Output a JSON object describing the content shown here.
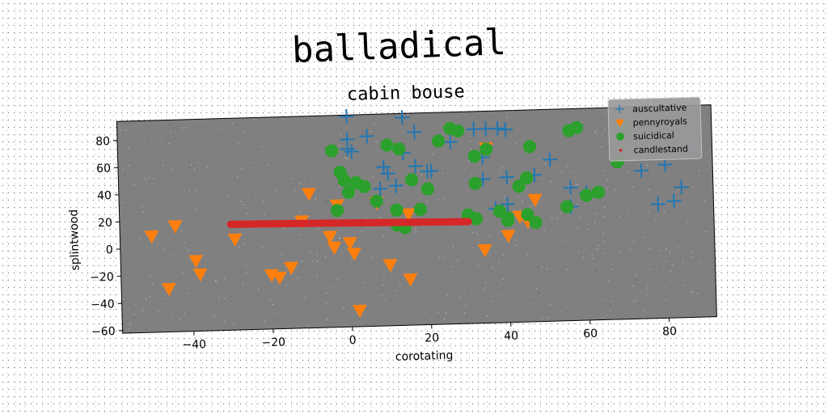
{
  "chart_data": {
    "type": "scatter",
    "title": "balladical",
    "subtitle": "cabin bouse",
    "xlabel": "corotating",
    "ylabel": "splintwood",
    "xlim": [
      -58,
      92
    ],
    "ylim": [
      -62,
      94
    ],
    "xticks": [
      -40,
      -20,
      0,
      20,
      40,
      60,
      80
    ],
    "yticks": [
      -60,
      -40,
      -20,
      0,
      20,
      40,
      60,
      80
    ],
    "xtick_labels": [
      "−40",
      "−20",
      "0",
      "20",
      "40",
      "60",
      "80"
    ],
    "ytick_labels": [
      "−60",
      "−40",
      "−20",
      "0",
      "20",
      "40",
      "60",
      "80"
    ],
    "background": "#808080",
    "grid": false,
    "legend_position": "top-right",
    "series": [
      {
        "name": "auscultative",
        "marker": "plus",
        "color": "#1f77b4",
        "points": [
          [
            0,
            93
          ],
          [
            14,
            91
          ],
          [
            17,
            80
          ],
          [
            5,
            78
          ],
          [
            0,
            76
          ],
          [
            0,
            69
          ],
          [
            1,
            67
          ],
          [
            26,
            72
          ],
          [
            14,
            65
          ],
          [
            9,
            55
          ],
          [
            17,
            55
          ],
          [
            20,
            51
          ],
          [
            21,
            51
          ],
          [
            10,
            50
          ],
          [
            12,
            41
          ],
          [
            8,
            39
          ],
          [
            32,
            81
          ],
          [
            35,
            81
          ],
          [
            38,
            81
          ],
          [
            40,
            80
          ],
          [
            34,
            60
          ],
          [
            34,
            44
          ],
          [
            40,
            45
          ],
          [
            47,
            46
          ],
          [
            51,
            57
          ],
          [
            56,
            36
          ],
          [
            60,
            32
          ],
          [
            56,
            22
          ],
          [
            37,
            22
          ],
          [
            40,
            25
          ],
          [
            74,
            47
          ],
          [
            78,
            22
          ],
          [
            80,
            51
          ],
          [
            82,
            24
          ],
          [
            84,
            34
          ],
          [
            86,
            60
          ]
        ]
      },
      {
        "name": "pennyroyals",
        "marker": "triangle-down",
        "color": "#ff7f0e",
        "points": [
          [
            -50,
            9
          ],
          [
            -44,
            16
          ],
          [
            -39,
            -10
          ],
          [
            -38,
            -20
          ],
          [
            -46,
            -30
          ],
          [
            -29,
            5
          ],
          [
            -20,
            -22
          ],
          [
            -18,
            -24
          ],
          [
            -15,
            -17
          ],
          [
            -12,
            17
          ],
          [
            -10,
            37
          ],
          [
            -5,
            5
          ],
          [
            -4,
            -3
          ],
          [
            -3,
            28
          ],
          [
            0,
            0
          ],
          [
            1,
            -8
          ],
          [
            7,
            29
          ],
          [
            10,
            -17
          ],
          [
            15,
            -28
          ],
          [
            15,
            20
          ],
          [
            2,
            -50
          ],
          [
            35,
            67
          ],
          [
            34,
            -8
          ],
          [
            40,
            2
          ],
          [
            43,
            16
          ],
          [
            45,
            12
          ],
          [
            47,
            28
          ]
        ]
      },
      {
        "name": "suicidical",
        "marker": "circle",
        "color": "#2ca02c",
        "points": [
          [
            -4,
            68
          ],
          [
            -2,
            52
          ],
          [
            -1,
            46
          ],
          [
            0,
            37
          ],
          [
            2,
            44
          ],
          [
            4,
            41
          ],
          [
            7,
            30
          ],
          [
            10,
            71
          ],
          [
            13,
            68
          ],
          [
            16,
            45
          ],
          [
            20,
            38
          ],
          [
            23,
            73
          ],
          [
            18,
            23
          ],
          [
            26,
            82
          ],
          [
            28,
            80
          ],
          [
            32,
            61
          ],
          [
            32,
            41
          ],
          [
            35,
            66
          ],
          [
            38,
            20
          ],
          [
            40,
            15
          ],
          [
            43,
            38
          ],
          [
            45,
            44
          ],
          [
            46,
            67
          ],
          [
            40,
            13
          ],
          [
            45,
            17
          ],
          [
            47,
            11
          ],
          [
            30,
            18
          ],
          [
            32,
            15
          ],
          [
            56,
            78
          ],
          [
            58,
            80
          ],
          [
            55,
            22
          ],
          [
            60,
            30
          ],
          [
            63,
            32
          ],
          [
            68,
            54
          ],
          [
            70,
            80
          ],
          [
            12,
            12
          ],
          [
            14,
            10
          ],
          [
            -3,
            24
          ],
          [
            12,
            23
          ]
        ]
      },
      {
        "name": "candlestand",
        "marker": "line",
        "color": "#d62728",
        "points": [
          [
            -30,
            16
          ],
          [
            30,
            13
          ]
        ]
      }
    ]
  }
}
